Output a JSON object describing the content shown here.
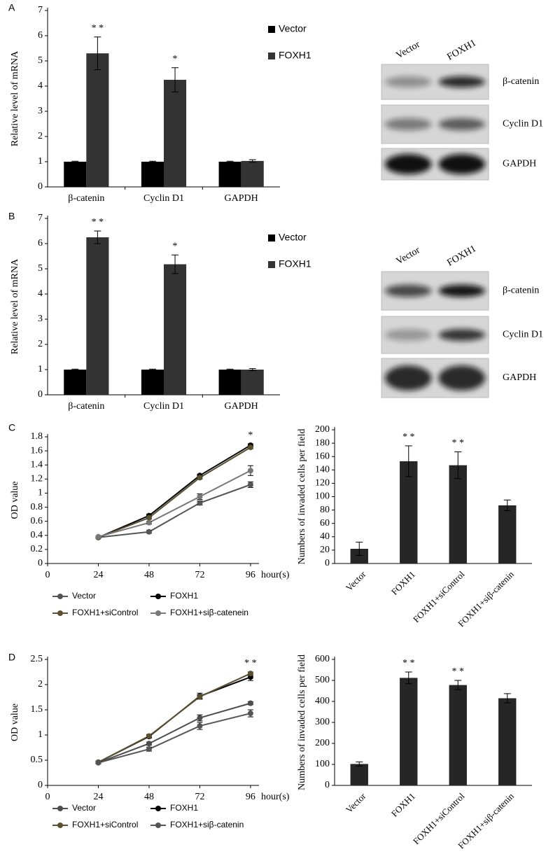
{
  "panel_labels": [
    "A",
    "B",
    "C",
    "D"
  ],
  "blots": [
    {
      "lanes": [
        "Vector",
        "FOXH1"
      ],
      "rows": [
        "β-catenin",
        "Cyclin D1",
        "GAPDH"
      ]
    },
    {
      "lanes": [
        "Vector",
        "FOXH1"
      ],
      "rows": [
        "β-catenin",
        "Cyclin D1",
        "GAPDH"
      ]
    }
  ],
  "chart_data": [
    {
      "type": "grouped_bar",
      "y_label": "Relative level of mRNA",
      "categories": [
        "β-catenin",
        "Cyclin D1",
        "GAPDH"
      ],
      "series": [
        {
          "name": "Vector",
          "color": "#000000",
          "values": [
            1,
            1,
            1
          ],
          "errors": [
            0.02,
            0.02,
            0.02
          ]
        },
        {
          "name": "FOXH1",
          "color": "#333333",
          "values": [
            5.3,
            4.25,
            1.03
          ],
          "errors": [
            0.65,
            0.48,
            0.05
          ]
        }
      ],
      "annotations": [
        "* *",
        "*",
        null
      ],
      "ylim": [
        0,
        7
      ],
      "yticks": [
        0,
        1,
        2,
        3,
        4,
        5,
        6,
        7
      ]
    },
    {
      "type": "grouped_bar",
      "y_label": "Relative level of mRNA",
      "categories": [
        "β-catenin",
        "Cyclin D1",
        "GAPDH"
      ],
      "series": [
        {
          "name": "Vector",
          "color": "#000000",
          "values": [
            1,
            1,
            1
          ],
          "errors": [
            0.02,
            0.02,
            0.02
          ]
        },
        {
          "name": "FOXH1",
          "color": "#333333",
          "values": [
            6.25,
            5.18,
            1.0
          ],
          "errors": [
            0.25,
            0.37,
            0.04
          ]
        }
      ],
      "annotations": [
        "* *",
        "*",
        null
      ],
      "ylim": [
        0,
        7
      ],
      "yticks": [
        0,
        1,
        2,
        3,
        4,
        5,
        6,
        7
      ]
    },
    {
      "type": "line",
      "x_label": "hour(s)",
      "y_label": "OD  value",
      "x": [
        24,
        48,
        72,
        96
      ],
      "series": [
        {
          "name": "Vector",
          "color": "#555555",
          "values": [
            0.37,
            0.45,
            0.86,
            1.12
          ],
          "errors": [
            0.01,
            0.02,
            0.03,
            0.04
          ]
        },
        {
          "name": "FOXH1",
          "color": "#000000",
          "values": [
            0.37,
            0.68,
            1.25,
            1.68
          ],
          "errors": [
            0.01,
            0.02,
            0.02,
            0.02
          ]
        },
        {
          "name": "FOXH1+siControl",
          "color": "#5a5030",
          "values": [
            0.37,
            0.65,
            1.22,
            1.65
          ],
          "errors": [
            0.01,
            0.02,
            0.02,
            0.02
          ]
        },
        {
          "name": "FOXH1+siβ-catenein",
          "color": "#777777",
          "values": [
            0.38,
            0.58,
            0.95,
            1.32
          ],
          "errors": [
            0.01,
            0.02,
            0.04,
            0.07
          ]
        }
      ],
      "annotations": [
        null,
        null,
        null,
        "*"
      ],
      "xlim": [
        0,
        100
      ],
      "xticks": [
        0,
        24,
        48,
        72,
        96
      ],
      "ylim": [
        0,
        1.8
      ],
      "yticks": [
        0,
        0.2,
        0.4,
        0.6,
        0.8,
        1,
        1.2,
        1.4,
        1.6,
        1.8
      ]
    },
    {
      "type": "bar",
      "y_label": "Numbers of invaded cells per field",
      "color": "#262626",
      "categories": [
        "Vector",
        "FOXH1",
        "FOXH1+siControl",
        "FOXH1+siβ-catenin"
      ],
      "values": [
        22,
        153,
        147,
        87
      ],
      "errors": [
        10,
        23,
        20,
        8
      ],
      "annotations": [
        null,
        "* *",
        "* *",
        null
      ],
      "ylim": [
        0,
        200
      ],
      "yticks": [
        0,
        20,
        40,
        60,
        80,
        100,
        120,
        140,
        160,
        180,
        200
      ]
    },
    {
      "type": "line",
      "x_label": "hour(s)",
      "y_label": "OD  value",
      "x": [
        24,
        48,
        72,
        96
      ],
      "series": [
        {
          "name": "Vector",
          "color": "#4d4d4d",
          "values": [
            0.45,
            0.83,
            1.34,
            1.63
          ],
          "errors": [
            0.02,
            0.03,
            0.06,
            0.03
          ]
        },
        {
          "name": "FOXH1",
          "color": "#000000",
          "values": [
            0.46,
            0.97,
            1.77,
            2.15
          ],
          "errors": [
            0.02,
            0.03,
            0.06,
            0.07
          ]
        },
        {
          "name": "FOXH1+siControl",
          "color": "#5a5030",
          "values": [
            0.46,
            0.98,
            1.76,
            2.22
          ],
          "errors": [
            0.02,
            0.03,
            0.04,
            0.03
          ]
        },
        {
          "name": "FOXH1+siβ-catenin",
          "color": "#555555",
          "values": [
            0.45,
            0.72,
            1.18,
            1.43
          ],
          "errors": [
            0.02,
            0.04,
            0.07,
            0.07
          ]
        }
      ],
      "annotations": [
        null,
        null,
        null,
        "* *"
      ],
      "xlim": [
        0,
        100
      ],
      "xticks": [
        0,
        24,
        48,
        72,
        96
      ],
      "ylim": [
        0,
        2.5
      ],
      "yticks": [
        0,
        0.5,
        1,
        1.5,
        2,
        2.5
      ]
    },
    {
      "type": "bar",
      "y_label": "Numbers of invaded cells per field",
      "color": "#262626",
      "categories": [
        "Vector",
        "FOXH1",
        "FOXH1+siControl",
        "FOXH1+siβ-catenin"
      ],
      "values": [
        102,
        512,
        478,
        415
      ],
      "errors": [
        10,
        28,
        22,
        22
      ],
      "annotations": [
        null,
        "* *",
        "* *",
        null
      ],
      "ylim": [
        0,
        600
      ],
      "yticks": [
        0,
        100,
        200,
        300,
        400,
        500,
        600
      ]
    }
  ]
}
